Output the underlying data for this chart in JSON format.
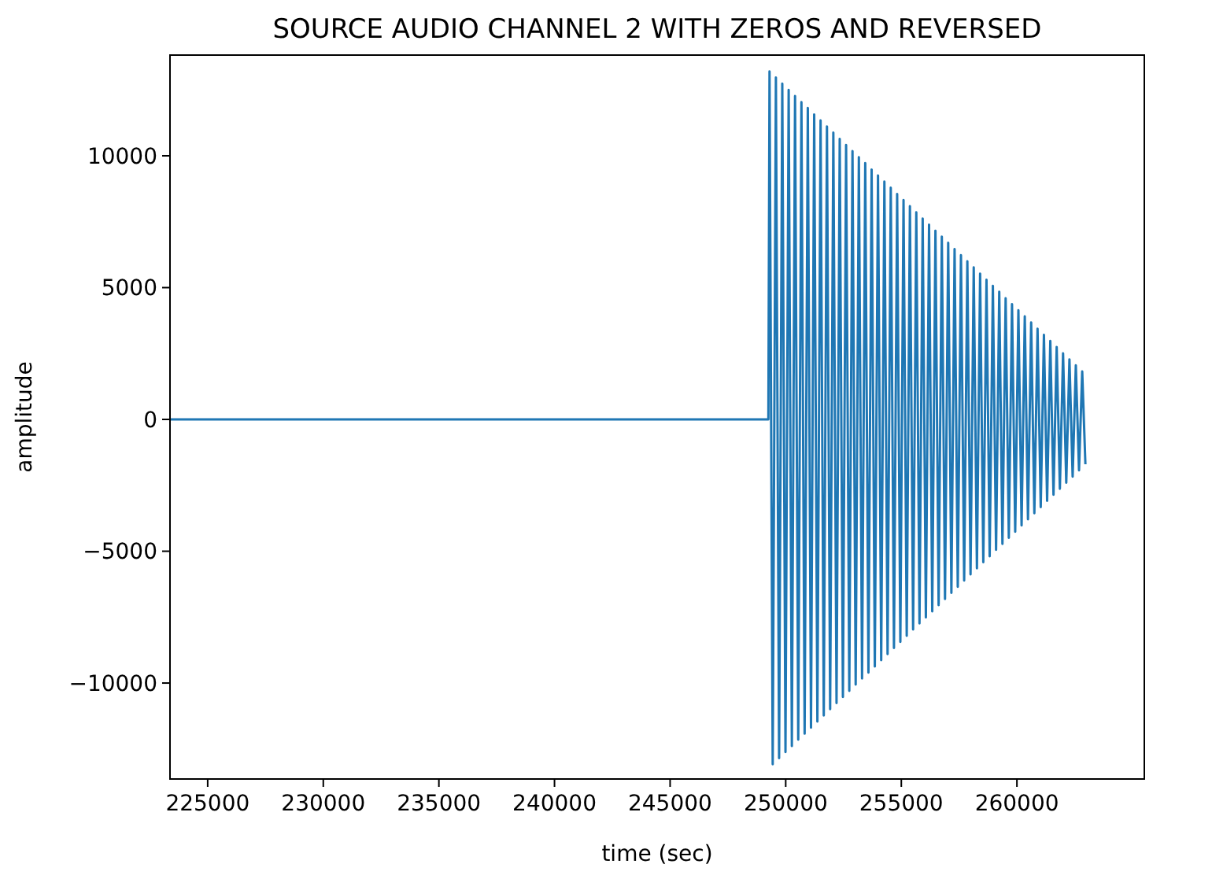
{
  "chart_data": {
    "type": "line",
    "title": "SOURCE AUDIO CHANNEL 2 WITH ZEROS AND REVERSED",
    "xlabel": "time (sec)",
    "ylabel": "amplitude",
    "xlim": [
      223370,
      265510
    ],
    "ylim": [
      -13640,
      13820
    ],
    "xticks": [
      225000,
      230000,
      235000,
      240000,
      245000,
      250000,
      255000,
      260000
    ],
    "yticks": [
      {
        "value": -10000,
        "label": "−10000"
      },
      {
        "value": -5000,
        "label": "−5000"
      },
      0,
      5000,
      10000
    ],
    "grid": false,
    "marker": "none",
    "line_style": "solid",
    "series": [
      {
        "color": "#1f77b4",
        "x": [
          223400,
          249250,
          249300,
          249438,
          249576,
          249714,
          249852,
          249990,
          250128,
          250266,
          250404,
          250542,
          250680,
          250818,
          250956,
          251094,
          251232,
          251370,
          251508,
          251646,
          251784,
          251922,
          252060,
          252198,
          252336,
          252474,
          252612,
          252750,
          252888,
          253026,
          253164,
          253302,
          253440,
          253578,
          253716,
          253854,
          253992,
          254130,
          254268,
          254406,
          254544,
          254682,
          254820,
          254958,
          255096,
          255234,
          255372,
          255510,
          255648,
          255786,
          255924,
          256062,
          256200,
          256338,
          256476,
          256614,
          256752,
          256890,
          257028,
          257166,
          257304,
          257442,
          257580,
          257718,
          257856,
          257994,
          258132,
          258270,
          258408,
          258546,
          258684,
          258822,
          258960,
          259098,
          259236,
          259374,
          259512,
          259650,
          259788,
          259926,
          260064,
          260202,
          260340,
          260478,
          260616,
          260754,
          260892,
          261030,
          261168,
          261306,
          261444,
          261582,
          261720,
          261858,
          261996,
          262134,
          262272,
          262410,
          262548,
          262686,
          262824,
          262962
        ],
        "values": [
          0,
          0,
          13200,
          -13080,
          12970,
          -12850,
          12740,
          -12620,
          12500,
          -12390,
          12270,
          -12150,
          12040,
          -11920,
          11810,
          -11690,
          11570,
          -11460,
          11340,
          -11230,
          11110,
          -10990,
          10880,
          -10760,
          10640,
          -10530,
          10410,
          -10300,
          10180,
          -10060,
          9950,
          -9830,
          9720,
          -9600,
          9480,
          -9370,
          9250,
          -9130,
          9020,
          -8900,
          8790,
          -8670,
          8550,
          -8440,
          8320,
          -8210,
          8090,
          -7970,
          7860,
          -7740,
          7620,
          -7510,
          7390,
          -7280,
          7160,
          -7040,
          6930,
          -6810,
          6700,
          -6580,
          6460,
          -6350,
          6230,
          -6110,
          6000,
          -5880,
          5770,
          -5650,
          5530,
          -5420,
          5300,
          -5190,
          5070,
          -4950,
          4840,
          -4720,
          4600,
          -4490,
          4370,
          -4260,
          4140,
          -4020,
          3910,
          -3790,
          3680,
          -3560,
          3440,
          -3330,
          3210,
          -3090,
          2980,
          -2860,
          2750,
          -2630,
          2510,
          -2400,
          2280,
          -2170,
          2050,
          -1930,
          1820,
          -1700
        ]
      }
    ]
  }
}
